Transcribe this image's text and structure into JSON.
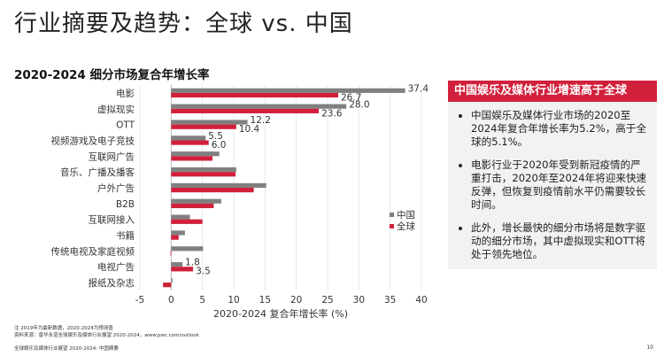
{
  "page_title": "行业摘要及趋势：全球 vs. 中国",
  "chart_data": {
    "type": "bar",
    "orientation": "horizontal",
    "title": "2020-2024 细分市场复合年增长率",
    "xlabel": "2020-2024 复合年增长率 (%)",
    "xlim": [
      -5,
      40
    ],
    "xticks": [
      -5,
      0,
      5,
      10,
      15,
      20,
      25,
      30,
      35,
      40
    ],
    "grid": true,
    "legend_position": "right",
    "categories": [
      "电影",
      "虚拟现实",
      "OTT",
      "视频游戏及电子竞技",
      "互联网广告",
      "音乐、广播及播客",
      "户外广告",
      "B2B",
      "互联网接入",
      "书籍",
      "传统电视及家庭视频",
      "电视广告",
      "报纸及杂志"
    ],
    "series": [
      {
        "name": "中国",
        "color": "#808080",
        "values": [
          37.4,
          28.0,
          12.2,
          5.5,
          7.7,
          10.4,
          15.2,
          8.0,
          3.0,
          2.2,
          5.1,
          1.8,
          0.2
        ]
      },
      {
        "name": "全球",
        "color": "#d1203b",
        "values": [
          26.7,
          23.6,
          10.4,
          6.0,
          6.6,
          10.3,
          13.2,
          6.8,
          5.0,
          1.2,
          -0.1,
          3.5,
          -1.3
        ]
      }
    ],
    "data_labels": [
      {
        "category": "电影",
        "series": "中国",
        "text": "37.4"
      },
      {
        "category": "电影",
        "series": "全球",
        "text": "26.7"
      },
      {
        "category": "虚拟现实",
        "series": "中国",
        "text": "28.0"
      },
      {
        "category": "虚拟现实",
        "series": "全球",
        "text": "23.6"
      },
      {
        "category": "OTT",
        "series": "中国",
        "text": "12.2"
      },
      {
        "category": "OTT",
        "series": "全球",
        "text": "10.4"
      },
      {
        "category": "视频游戏及电子竞技",
        "series": "中国",
        "text": "5.5"
      },
      {
        "category": "视频游戏及电子竞技",
        "series": "全球",
        "text": "6.0"
      },
      {
        "category": "电视广告",
        "series": "中国",
        "text": "1.8"
      },
      {
        "category": "电视广告",
        "series": "全球",
        "text": "3.5"
      }
    ]
  },
  "panel": {
    "heading": "中国娱乐及媒体行业增速高于全球",
    "bullets": [
      "中国娱乐及媒体行业市场的2020至2024年复合年增长率为5.2%，高于全球的5.1%。",
      "电影行业于2020年受到新冠疫情的严重打击，2020年至2024年将迎来快速反弹，但恢复到疫情前水平仍需要较长时间。",
      "此外，增长最快的细分市场将是数字驱动的细分市场，其中虚拟现实和OTT将处于领先地位。"
    ],
    "accent_color": "#d1203b"
  },
  "footer": {
    "note": "注 2019年为最新数据，2020-2024为预测值",
    "source": "资料来源：普华永道全球娱乐及媒体行业展望 2020-2024，www.pwc.com/outlook",
    "doc_title": "全球娱乐及媒体行业展望 2020-2024: 中国摘要",
    "page_number": "10"
  }
}
